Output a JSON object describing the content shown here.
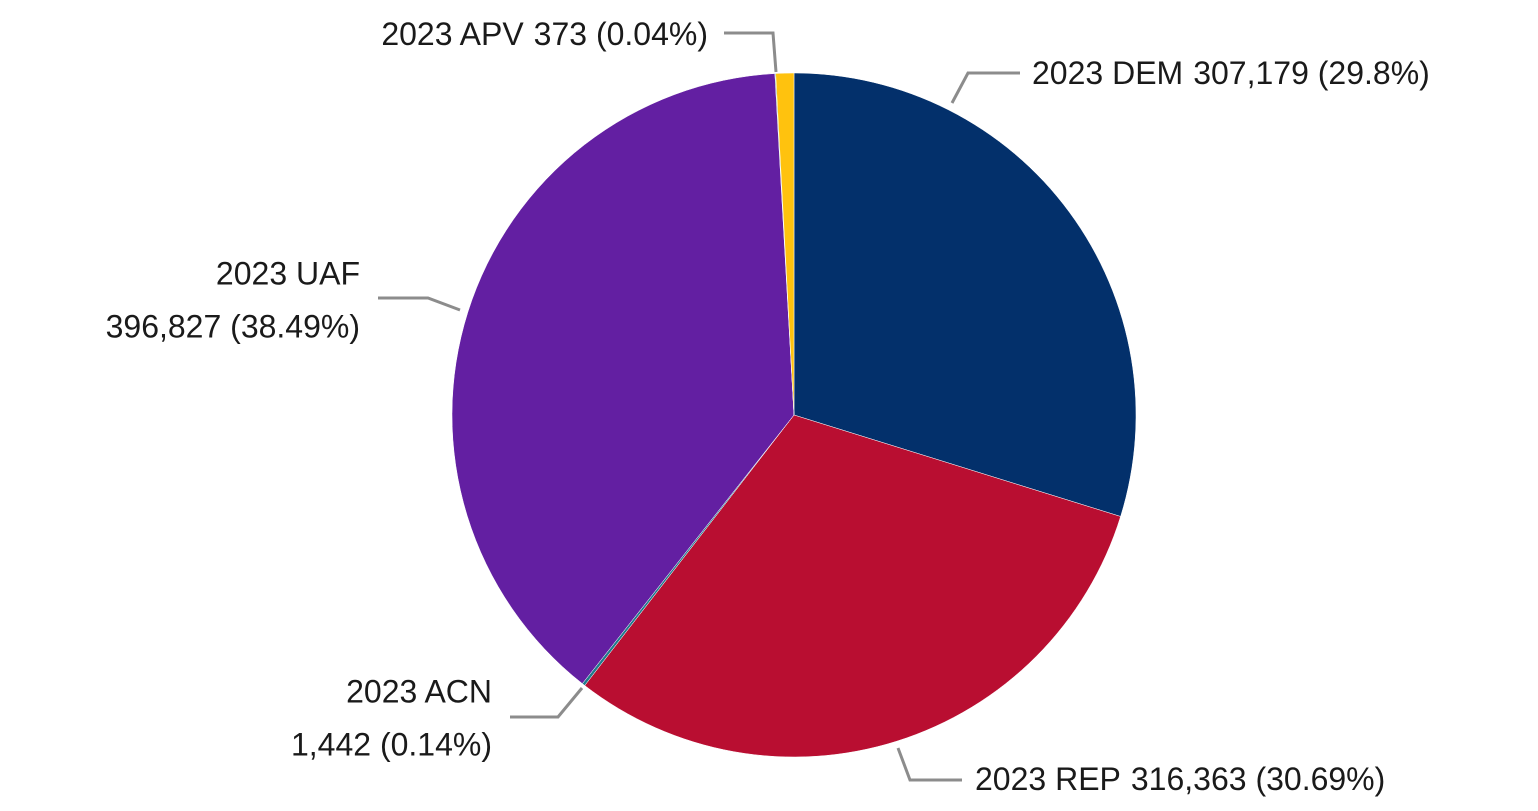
{
  "chart_data": {
    "type": "pie",
    "categories": [
      "2023 DEM",
      "2023 REP",
      "2023 ACN",
      "2023 UAF",
      "2023 APV",
      null
    ],
    "values": [
      307179,
      316363,
      1442,
      396827,
      373,
      8800
    ],
    "value_labels": [
      "307,179 (29.8%)",
      "316,363 (30.69%)",
      "1,442 (0.14%)",
      "396,827 (38.49%)",
      "373 (0.04%)",
      null
    ],
    "colors": [
      "#03306b",
      "#b90e31",
      "#1f7a8c",
      "#631fa2",
      "#3a8a3a",
      "#ffc20e"
    ]
  }
}
